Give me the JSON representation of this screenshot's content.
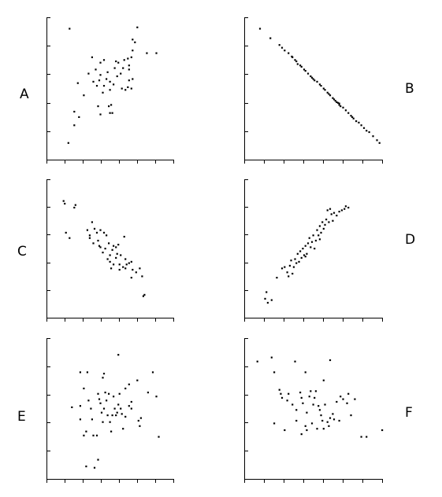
{
  "chart_data": [
    {
      "type": "scatter",
      "label": "A",
      "xlim": [
        0,
        10
      ],
      "ylim": [
        0,
        10
      ],
      "grid": false,
      "points": [
        [
          1.6,
          9.4
        ],
        [
          1.5,
          1.0
        ],
        [
          2.0,
          3.3
        ],
        [
          2.4,
          2.9
        ],
        [
          2.8,
          4.5
        ],
        [
          2.3,
          5.4
        ],
        [
          2.0,
          2.3
        ],
        [
          3.2,
          6.1
        ],
        [
          3.8,
          6.4
        ],
        [
          3.5,
          7.3
        ],
        [
          4.5,
          7.1
        ],
        [
          4.8,
          6.2
        ],
        [
          4.2,
          6.9
        ],
        [
          4.2,
          6.0
        ],
        [
          4.1,
          5.6
        ],
        [
          3.9,
          5.2
        ],
        [
          3.6,
          5.5
        ],
        [
          4.7,
          5.7
        ],
        [
          4.5,
          5.2
        ],
        [
          4.4,
          4.7
        ],
        [
          4.0,
          3.7
        ],
        [
          4.2,
          3.1
        ],
        [
          4.9,
          3.7
        ],
        [
          5.1,
          3.8
        ],
        [
          5.2,
          3.2
        ],
        [
          5.0,
          3.2
        ],
        [
          5.0,
          4.9
        ],
        [
          5.0,
          5.5
        ],
        [
          5.3,
          5.3
        ],
        [
          5.4,
          6.5
        ],
        [
          5.5,
          7.0
        ],
        [
          5.7,
          6.9
        ],
        [
          6.1,
          6.5
        ],
        [
          6.2,
          7.1
        ],
        [
          6.5,
          7.2
        ],
        [
          6.6,
          6.7
        ],
        [
          6.6,
          5.6
        ],
        [
          6.9,
          5.7
        ],
        [
          5.6,
          5.9
        ],
        [
          5.9,
          6.1
        ],
        [
          6.8,
          5.0
        ],
        [
          6.0,
          5.0
        ],
        [
          6.3,
          4.9
        ],
        [
          6.8,
          7.3
        ],
        [
          6.9,
          7.8
        ],
        [
          7.1,
          8.4
        ],
        [
          6.9,
          8.6
        ],
        [
          7.3,
          9.5
        ],
        [
          8.1,
          7.6
        ],
        [
          8.9,
          7.6
        ],
        [
          6.6,
          6.4
        ],
        [
          6.5,
          5.1
        ]
      ]
    },
    {
      "type": "scatter",
      "label": "B",
      "xlim": [
        0,
        10
      ],
      "ylim": [
        0,
        10
      ],
      "grid": false,
      "points": [
        [
          0.9,
          9.4
        ],
        [
          1.7,
          8.7
        ],
        [
          2.4,
          8.2
        ],
        [
          2.8,
          7.8
        ],
        [
          3.1,
          7.6
        ],
        [
          3.4,
          7.3
        ],
        [
          3.6,
          7.1
        ],
        [
          3.7,
          7.0
        ],
        [
          3.8,
          6.8
        ],
        [
          4.0,
          6.7
        ],
        [
          4.1,
          6.6
        ],
        [
          4.3,
          6.4
        ],
        [
          4.4,
          6.3
        ],
        [
          4.6,
          6.1
        ],
        [
          4.8,
          5.9
        ],
        [
          5.0,
          5.7
        ],
        [
          5.1,
          5.6
        ],
        [
          5.3,
          5.5
        ],
        [
          5.5,
          5.3
        ],
        [
          5.6,
          5.2
        ],
        [
          5.8,
          5.0
        ],
        [
          5.9,
          4.9
        ],
        [
          6.1,
          4.7
        ],
        [
          6.2,
          4.6
        ],
        [
          6.3,
          4.5
        ],
        [
          6.5,
          4.3
        ],
        [
          6.6,
          4.2
        ],
        [
          6.7,
          4.1
        ],
        [
          6.8,
          4.0
        ],
        [
          7.0,
          3.9
        ],
        [
          7.1,
          3.7
        ],
        [
          7.3,
          3.6
        ],
        [
          7.5,
          3.4
        ],
        [
          7.7,
          3.2
        ],
        [
          7.9,
          3.0
        ],
        [
          8.1,
          2.8
        ],
        [
          8.3,
          2.6
        ],
        [
          8.5,
          2.5
        ],
        [
          8.7,
          2.3
        ],
        [
          8.9,
          2.1
        ],
        [
          9.1,
          1.9
        ],
        [
          9.3,
          1.8
        ],
        [
          9.6,
          1.5
        ],
        [
          9.9,
          1.2
        ],
        [
          10.1,
          1.0
        ],
        [
          7.0,
          3.8
        ],
        [
          6.9,
          3.95
        ],
        [
          4.9,
          5.8
        ],
        [
          3.35,
          7.35
        ],
        [
          2.6,
          8.0
        ],
        [
          8.0,
          2.9
        ]
      ]
    },
    {
      "type": "scatter",
      "label": "C",
      "xlim": [
        0,
        10
      ],
      "ylim": [
        0,
        10
      ],
      "grid": false,
      "points": [
        [
          1.2,
          8.4
        ],
        [
          1.1,
          8.6
        ],
        [
          2.0,
          8.1
        ],
        [
          2.1,
          8.3
        ],
        [
          1.3,
          6.2
        ],
        [
          1.6,
          5.8
        ],
        [
          3.1,
          6.4
        ],
        [
          3.3,
          6.0
        ],
        [
          3.5,
          7.0
        ],
        [
          3.7,
          6.5
        ],
        [
          3.9,
          6.2
        ],
        [
          3.3,
          5.8
        ],
        [
          3.6,
          5.4
        ],
        [
          4.0,
          5.6
        ],
        [
          4.1,
          5.2
        ],
        [
          4.2,
          6.4
        ],
        [
          4.5,
          6.2
        ],
        [
          4.6,
          5.0
        ],
        [
          4.7,
          6.0
        ],
        [
          4.9,
          5.4
        ],
        [
          5.0,
          4.5
        ],
        [
          5.2,
          4.9
        ],
        [
          5.3,
          5.2
        ],
        [
          5.5,
          5.1
        ],
        [
          5.6,
          4.6
        ],
        [
          5.7,
          5.3
        ],
        [
          5.9,
          4.5
        ],
        [
          6.2,
          5.9
        ],
        [
          4.2,
          5.1
        ],
        [
          4.4,
          4.7
        ],
        [
          4.8,
          4.2
        ],
        [
          5.0,
          4.0
        ],
        [
          5.3,
          3.8
        ],
        [
          5.5,
          4.3
        ],
        [
          5.8,
          3.8
        ],
        [
          6.1,
          3.6
        ],
        [
          6.3,
          3.5
        ],
        [
          6.3,
          4.2
        ],
        [
          6.4,
          3.8
        ],
        [
          6.6,
          3.9
        ],
        [
          6.8,
          4.0
        ],
        [
          6.9,
          3.4
        ],
        [
          7.2,
          3.2
        ],
        [
          7.5,
          3.5
        ],
        [
          7.7,
          2.9
        ],
        [
          7.8,
          1.4
        ],
        [
          7.9,
          1.5
        ],
        [
          6.8,
          2.8
        ],
        [
          5.8,
          3.4
        ],
        [
          5.1,
          3.5
        ]
      ]
    },
    {
      "type": "scatter",
      "label": "D",
      "xlim": [
        0,
        10
      ],
      "ylim": [
        0,
        10
      ],
      "grid": false,
      "points": [
        [
          1.3,
          1.2
        ],
        [
          1.4,
          1.7
        ],
        [
          1.5,
          0.9
        ],
        [
          1.8,
          1.1
        ],
        [
          2.2,
          2.8
        ],
        [
          2.6,
          3.5
        ],
        [
          2.8,
          3.6
        ],
        [
          3.0,
          3.2
        ],
        [
          3.1,
          2.9
        ],
        [
          3.2,
          3.7
        ],
        [
          3.3,
          4.1
        ],
        [
          3.4,
          3.1
        ],
        [
          3.5,
          3.6
        ],
        [
          3.6,
          4.2
        ],
        [
          3.7,
          3.9
        ],
        [
          3.8,
          4.6
        ],
        [
          3.9,
          4.0
        ],
        [
          4.0,
          4.8
        ],
        [
          4.1,
          4.3
        ],
        [
          4.2,
          5.0
        ],
        [
          4.3,
          4.5
        ],
        [
          4.4,
          5.2
        ],
        [
          4.5,
          4.6
        ],
        [
          4.6,
          5.4
        ],
        [
          4.7,
          5.8
        ],
        [
          4.8,
          5.1
        ],
        [
          4.9,
          5.5
        ],
        [
          5.0,
          6.0
        ],
        [
          5.1,
          5.0
        ],
        [
          5.2,
          5.6
        ],
        [
          5.3,
          6.4
        ],
        [
          5.4,
          6.0
        ],
        [
          5.5,
          6.7
        ],
        [
          5.6,
          6.2
        ],
        [
          5.7,
          7.0
        ],
        [
          5.8,
          6.5
        ],
        [
          5.9,
          6.8
        ],
        [
          6.0,
          7.2
        ],
        [
          6.2,
          7.0
        ],
        [
          6.4,
          7.6
        ],
        [
          6.5,
          7.1
        ],
        [
          6.6,
          7.7
        ],
        [
          6.8,
          7.5
        ],
        [
          7.0,
          7.8
        ],
        [
          7.2,
          7.9
        ],
        [
          7.4,
          8.0
        ],
        [
          7.5,
          8.2
        ],
        [
          7.7,
          8.1
        ],
        [
          6.1,
          7.9
        ],
        [
          6.3,
          8.0
        ],
        [
          5.5,
          5.7
        ],
        [
          4.4,
          4.4
        ]
      ]
    },
    {
      "type": "scatter",
      "label": "E",
      "xlim": [
        0,
        10
      ],
      "ylim": [
        0,
        10
      ],
      "grid": false,
      "points": [
        [
          2.5,
          7.7
        ],
        [
          3.1,
          7.7
        ],
        [
          4.5,
          7.6
        ],
        [
          4.4,
          7.3
        ],
        [
          4.9,
          6.1
        ],
        [
          5.7,
          9.0
        ],
        [
          6.3,
          6.5
        ],
        [
          6.6,
          6.8
        ],
        [
          6.8,
          5.5
        ],
        [
          7.3,
          7.1
        ],
        [
          8.2,
          6.2
        ],
        [
          8.6,
          7.7
        ],
        [
          8.9,
          5.9
        ],
        [
          9.1,
          2.9
        ],
        [
          2.8,
          6.5
        ],
        [
          2.5,
          4.2
        ],
        [
          2.8,
          3.0
        ],
        [
          3.0,
          3.3
        ],
        [
          1.8,
          5.1
        ],
        [
          2.5,
          5.2
        ],
        [
          3.2,
          5.6
        ],
        [
          3.4,
          5.0
        ],
        [
          3.5,
          4.2
        ],
        [
          3.6,
          3.0
        ],
        [
          3.9,
          3.0
        ],
        [
          4.0,
          6.1
        ],
        [
          4.1,
          5.7
        ],
        [
          4.2,
          5.4
        ],
        [
          4.3,
          4.7
        ],
        [
          4.4,
          4.0
        ],
        [
          4.5,
          5.0
        ],
        [
          4.6,
          6.2
        ],
        [
          4.7,
          5.6
        ],
        [
          4.8,
          4.5
        ],
        [
          5.0,
          4.0
        ],
        [
          5.1,
          3.3
        ],
        [
          5.2,
          4.5
        ],
        [
          5.3,
          5.9
        ],
        [
          5.4,
          5.0
        ],
        [
          5.5,
          4.5
        ],
        [
          5.6,
          4.7
        ],
        [
          5.7,
          5.3
        ],
        [
          5.8,
          6.1
        ],
        [
          5.9,
          5.0
        ],
        [
          6.0,
          4.6
        ],
        [
          6.1,
          3.5
        ],
        [
          6.3,
          4.4
        ],
        [
          6.6,
          5.2
        ],
        [
          6.8,
          5.0
        ],
        [
          7.4,
          4.1
        ],
        [
          7.5,
          3.7
        ],
        [
          7.6,
          4.3
        ],
        [
          4.0,
          1.2
        ],
        [
          3.0,
          0.7
        ],
        [
          3.7,
          0.6
        ]
      ]
    },
    {
      "type": "scatter",
      "label": "F",
      "xlim": [
        0,
        10
      ],
      "ylim": [
        0,
        10
      ],
      "grid": false,
      "points": [
        [
          0.7,
          8.5
        ],
        [
          1.8,
          8.8
        ],
        [
          2.0,
          7.7
        ],
        [
          3.6,
          8.5
        ],
        [
          4.4,
          7.7
        ],
        [
          5.8,
          7.1
        ],
        [
          6.3,
          8.6
        ],
        [
          2.4,
          6.4
        ],
        [
          2.5,
          6.1
        ],
        [
          2.6,
          5.8
        ],
        [
          3.0,
          5.6
        ],
        [
          3.1,
          6.1
        ],
        [
          3.4,
          5.3
        ],
        [
          3.7,
          4.9
        ],
        [
          4.0,
          6.2
        ],
        [
          4.1,
          5.8
        ],
        [
          4.2,
          5.4
        ],
        [
          4.5,
          4.7
        ],
        [
          4.7,
          5.9
        ],
        [
          4.8,
          6.3
        ],
        [
          5.0,
          5.3
        ],
        [
          5.1,
          5.8
        ],
        [
          5.2,
          6.3
        ],
        [
          5.4,
          5.2
        ],
        [
          5.5,
          4.9
        ],
        [
          5.6,
          4.5
        ],
        [
          5.7,
          4.1
        ],
        [
          5.8,
          3.5
        ],
        [
          5.9,
          5.3
        ],
        [
          6.1,
          4.0
        ],
        [
          6.3,
          4.3
        ],
        [
          6.5,
          4.6
        ],
        [
          6.8,
          5.5
        ],
        [
          7.0,
          4.1
        ],
        [
          7.1,
          5.9
        ],
        [
          7.3,
          5.7
        ],
        [
          7.6,
          5.4
        ],
        [
          7.7,
          6.1
        ],
        [
          7.9,
          4.5
        ],
        [
          2.0,
          3.9
        ],
        [
          2.8,
          3.4
        ],
        [
          3.7,
          4.1
        ],
        [
          4.1,
          3.1
        ],
        [
          4.4,
          3.7
        ],
        [
          4.5,
          3.4
        ],
        [
          4.9,
          3.9
        ],
        [
          5.3,
          3.5
        ],
        [
          6.2,
          3.7
        ],
        [
          6.6,
          4.2
        ],
        [
          8.7,
          2.9
        ],
        [
          9.1,
          2.9
        ],
        [
          10.3,
          3.4
        ],
        [
          8.2,
          5.7
        ]
      ]
    }
  ]
}
